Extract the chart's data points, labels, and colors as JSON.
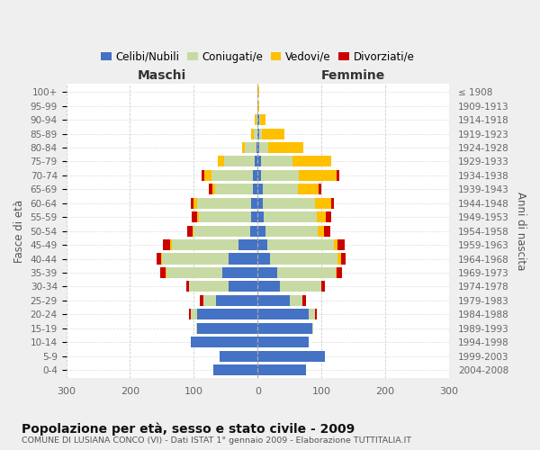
{
  "age_groups": [
    "100+",
    "95-99",
    "90-94",
    "85-89",
    "80-84",
    "75-79",
    "70-74",
    "65-69",
    "60-64",
    "55-59",
    "50-54",
    "45-49",
    "40-44",
    "35-39",
    "30-34",
    "25-29",
    "20-24",
    "15-19",
    "10-14",
    "5-9",
    "0-4"
  ],
  "birth_years": [
    "≤ 1908",
    "1909-1913",
    "1914-1918",
    "1919-1923",
    "1924-1928",
    "1929-1933",
    "1934-1938",
    "1939-1943",
    "1944-1948",
    "1949-1953",
    "1954-1958",
    "1959-1963",
    "1964-1968",
    "1969-1973",
    "1974-1978",
    "1979-1983",
    "1984-1988",
    "1989-1993",
    "1994-1998",
    "1999-2003",
    "2004-2008"
  ],
  "maschi_celibi": [
    0,
    0,
    0,
    1,
    2,
    5,
    8,
    8,
    10,
    10,
    12,
    30,
    45,
    55,
    45,
    65,
    95,
    95,
    105,
    60,
    70
  ],
  "maschi_coniugati": [
    0,
    0,
    2,
    5,
    18,
    48,
    65,
    58,
    85,
    82,
    88,
    105,
    105,
    88,
    62,
    20,
    10,
    2,
    0,
    0,
    0
  ],
  "maschi_vedovi": [
    0,
    1,
    2,
    5,
    5,
    10,
    10,
    5,
    5,
    3,
    2,
    2,
    1,
    1,
    0,
    0,
    0,
    0,
    0,
    0,
    0
  ],
  "maschi_divorziati": [
    0,
    0,
    0,
    0,
    0,
    0,
    5,
    5,
    5,
    8,
    8,
    12,
    8,
    8,
    5,
    5,
    2,
    0,
    0,
    0,
    0
  ],
  "femmine_nubili": [
    0,
    0,
    2,
    2,
    2,
    5,
    5,
    8,
    8,
    10,
    12,
    15,
    20,
    30,
    35,
    50,
    80,
    85,
    80,
    105,
    75
  ],
  "femmine_coniugate": [
    0,
    0,
    2,
    5,
    15,
    50,
    60,
    55,
    82,
    82,
    82,
    105,
    105,
    92,
    65,
    20,
    10,
    2,
    0,
    0,
    0
  ],
  "femmine_vedove": [
    2,
    2,
    8,
    35,
    55,
    60,
    58,
    32,
    25,
    15,
    10,
    5,
    5,
    2,
    0,
    0,
    0,
    0,
    0,
    0,
    0
  ],
  "femmine_divorziate": [
    0,
    0,
    0,
    0,
    0,
    0,
    5,
    5,
    5,
    8,
    10,
    12,
    8,
    8,
    5,
    5,
    2,
    0,
    0,
    0,
    0
  ],
  "color_celibi": "#4472c4",
  "color_coniugati": "#c8daa4",
  "color_vedovi": "#ffc000",
  "color_divorziati": "#cc0000",
  "legend_labels": [
    "Celibi/Nubili",
    "Coniugati/e",
    "Vedovi/e",
    "Divorziati/e"
  ],
  "title": "Popolazione per età, sesso e stato civile - 2009",
  "subtitle": "COMUNE DI LUSIANA CONCO (VI) - Dati ISTAT 1° gennaio 2009 - Elaborazione TUTTITALIA.IT",
  "maschi_label": "Maschi",
  "femmine_label": "Femmine",
  "fasce_label": "Fasce di età",
  "anni_label": "Anni di nascita",
  "xlim": 300,
  "bg_color": "#efefef"
}
